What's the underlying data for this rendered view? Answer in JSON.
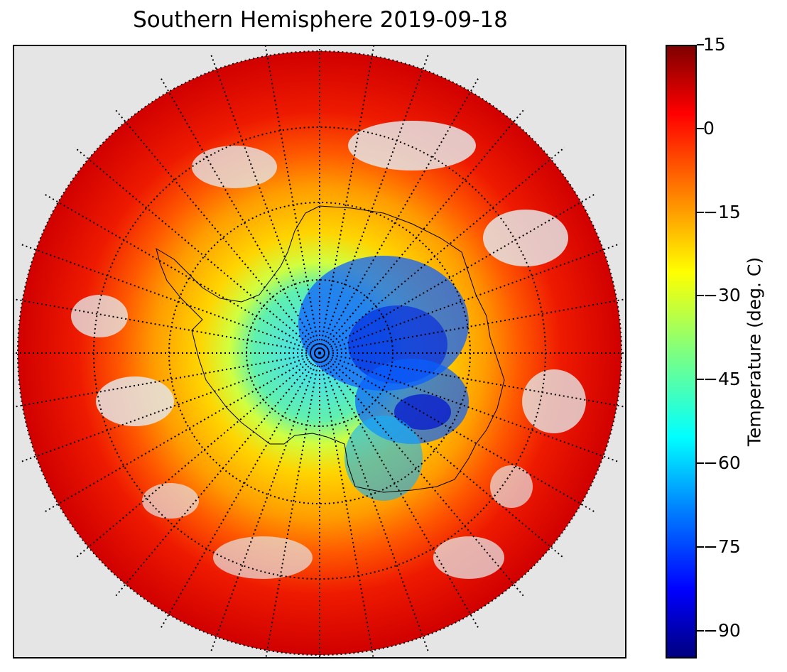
{
  "title": "Southern Hemisphere 2019-09-18",
  "colorbar": {
    "label": "Temperature (deg. C)",
    "min": -95,
    "max": 15,
    "ticks": [
      15,
      0,
      -15,
      -30,
      -45,
      -60,
      -75,
      -90
    ],
    "tick_labels": [
      "15",
      "0",
      "−15",
      "−30",
      "−45",
      "−60",
      "−75",
      "−90"
    ],
    "colormap": "jet"
  },
  "map": {
    "projection": "south-polar-stereographic",
    "background_color": "#e5e5e5",
    "graticule_style": "dotted",
    "meridian_spacing_deg": 10,
    "parallel_spacing_deg": 15
  },
  "colors": {
    "warm": "#d40000",
    "orange": "#ff6a00",
    "yellow": "#ffd400",
    "green": "#50ffa0",
    "cyan": "#00d8ff",
    "blue": "#0050ff",
    "deep_blue": "#0010d0"
  }
}
